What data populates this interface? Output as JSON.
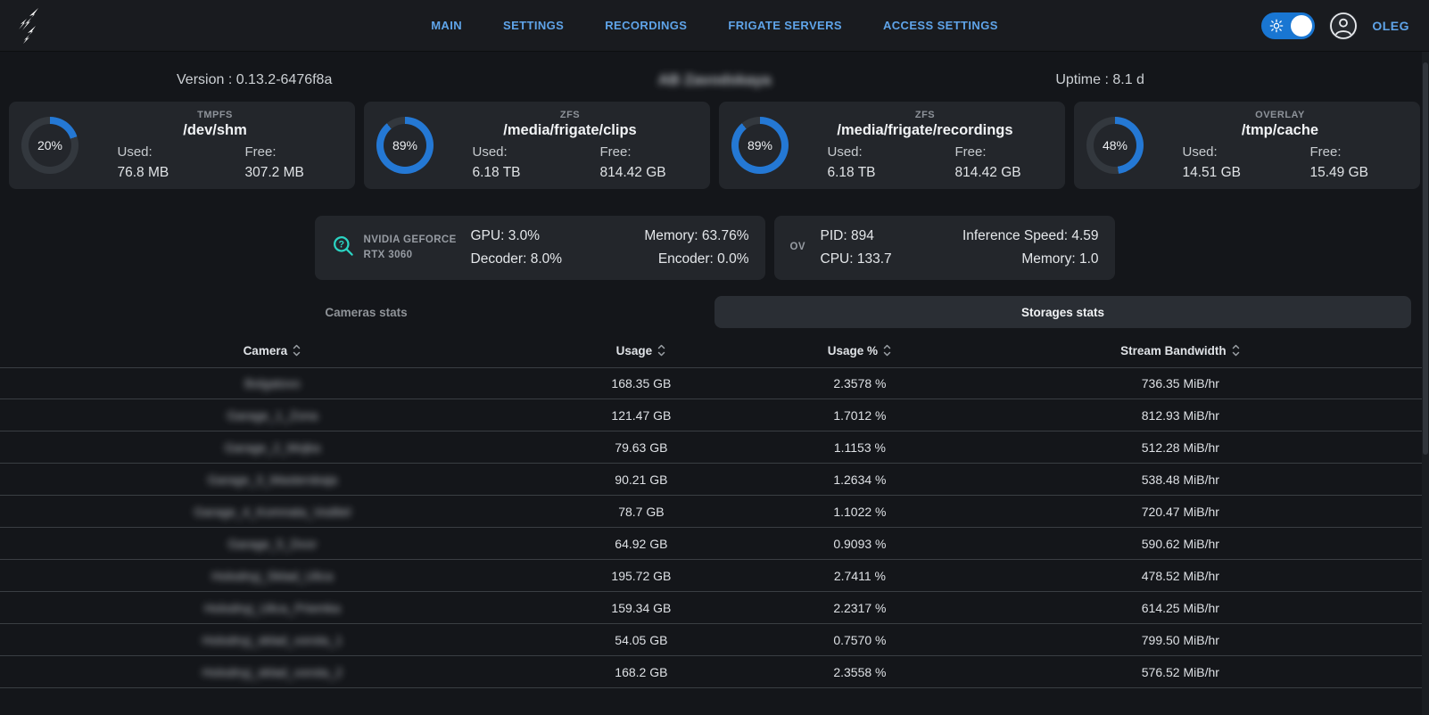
{
  "nav": {
    "links": [
      "MAIN",
      "SETTINGS",
      "RECORDINGS",
      "FRIGATE SERVERS",
      "ACCESS SETTINGS"
    ],
    "user": "OLEG"
  },
  "header": {
    "version": "Version : 0.13.2-6476f8a",
    "site_title": "AB Zavodskaya",
    "site_title_blurred": true,
    "uptime": "Uptime : 8.1 d"
  },
  "storage_cards": [
    {
      "fs": "TMPFS",
      "path": "/dev/shm",
      "percent": 20,
      "percent_label": "20%",
      "used_label": "Used:",
      "used": "76.8 MB",
      "free_label": "Free:",
      "free": "307.2 MB"
    },
    {
      "fs": "ZFS",
      "path": "/media/frigate/clips",
      "percent": 89,
      "percent_label": "89%",
      "used_label": "Used:",
      "used": "6.18 TB",
      "free_label": "Free:",
      "free": "814.42 GB"
    },
    {
      "fs": "ZFS",
      "path": "/media/frigate/recordings",
      "percent": 89,
      "percent_label": "89%",
      "used_label": "Used:",
      "used": "6.18 TB",
      "free_label": "Free:",
      "free": "814.42 GB"
    },
    {
      "fs": "OVERLAY",
      "path": "/tmp/cache",
      "percent": 48,
      "percent_label": "48%",
      "used_label": "Used:",
      "used": "14.51 GB",
      "free_label": "Free:",
      "free": "15.49 GB"
    }
  ],
  "gpu_card": {
    "name": "NVIDIA GEFORCE RTX 3060",
    "stats_left": [
      {
        "label": "GPU:",
        "value": "3.0%"
      },
      {
        "label": "Decoder:",
        "value": "8.0%"
      }
    ],
    "stats_right": [
      {
        "label": "Memory:",
        "value": "63.76%"
      },
      {
        "label": "Encoder:",
        "value": "0.0%"
      }
    ]
  },
  "detector_card": {
    "name": "OV",
    "stats_left": [
      {
        "label": "PID:",
        "value": "894"
      },
      {
        "label": "CPU:",
        "value": "133.7"
      }
    ],
    "stats_right": [
      {
        "label": "Inference Speed:",
        "value": "4.59"
      },
      {
        "label": "Memory:",
        "value": "1.0"
      }
    ]
  },
  "tabs": [
    {
      "label": "Cameras stats",
      "active": false
    },
    {
      "label": "Storages stats",
      "active": true
    }
  ],
  "table": {
    "columns": [
      {
        "label": "Camera",
        "sortable": true
      },
      {
        "label": "Usage",
        "sortable": true
      },
      {
        "label": "Usage %",
        "sortable": true
      },
      {
        "label": "Stream Bandwidth",
        "sortable": true
      }
    ],
    "camera_names_blurred": true,
    "rows": [
      {
        "camera": "Bolgatovo",
        "usage": "168.35 GB",
        "usage_percent": "2.3578 %",
        "bandwidth": "736.35 MiB/hr"
      },
      {
        "camera": "Garage_1_Zona",
        "usage": "121.47 GB",
        "usage_percent": "1.7012 %",
        "bandwidth": "812.93 MiB/hr"
      },
      {
        "camera": "Garage_2_Mojka",
        "usage": "79.63 GB",
        "usage_percent": "1.1153 %",
        "bandwidth": "512.28 MiB/hr"
      },
      {
        "camera": "Garage_3_Masterskaja",
        "usage": "90.21 GB",
        "usage_percent": "1.2634 %",
        "bandwidth": "538.48 MiB/hr"
      },
      {
        "camera": "Garage_4_Komnata_Voditel",
        "usage": "78.7 GB",
        "usage_percent": "1.1022 %",
        "bandwidth": "720.47 MiB/hr"
      },
      {
        "camera": "Garage_5_Dvor",
        "usage": "64.92 GB",
        "usage_percent": "0.9093 %",
        "bandwidth": "590.62 MiB/hr"
      },
      {
        "camera": "Holodnyj_Sklad_Ulica",
        "usage": "195.72 GB",
        "usage_percent": "2.7411 %",
        "bandwidth": "478.52 MiB/hr"
      },
      {
        "camera": "Holodnyj_Ulica_Priemka",
        "usage": "159.34 GB",
        "usage_percent": "2.2317 %",
        "bandwidth": "614.25 MiB/hr"
      },
      {
        "camera": "Holodnyj_sklad_vorota_1",
        "usage": "54.05 GB",
        "usage_percent": "0.7570 %",
        "bandwidth": "799.50 MiB/hr"
      },
      {
        "camera": "Holodnyj_sklad_vorota_2",
        "usage": "168.2 GB",
        "usage_percent": "2.3558 %",
        "bandwidth": "576.52 MiB/hr"
      }
    ]
  },
  "colors": {
    "accent_link": "#5fa4e9",
    "toggle_blue": "#1976d2",
    "donut_arc": "#2478d4",
    "donut_track": "#33383e",
    "gpu_icon": "#2bd4c3",
    "card_bg": "#23262b"
  }
}
